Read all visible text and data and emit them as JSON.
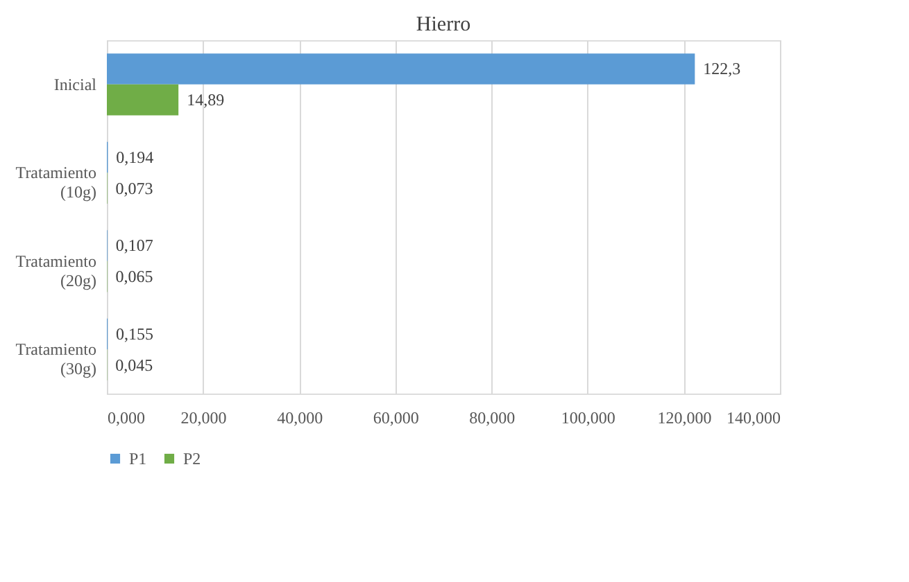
{
  "chart_data": {
    "type": "bar",
    "orientation": "horizontal",
    "title": "Hierro",
    "categories": [
      "Inicial",
      "Tratamiento (10g)",
      "Tratamiento (20g)",
      "Tratamiento (30g)"
    ],
    "series": [
      {
        "name": "P1",
        "color": "#5b9bd5",
        "values": [
          122.3,
          0.194,
          0.107,
          0.155
        ],
        "value_labels": [
          "122,3",
          "0,194",
          "0,107",
          "0,155"
        ]
      },
      {
        "name": "P2",
        "color": "#70ad47",
        "values": [
          14.89,
          0.073,
          0.065,
          0.045
        ],
        "value_labels": [
          "14,89",
          "0,073",
          "0,065",
          "0,045"
        ]
      }
    ],
    "xlim": [
      0,
      140
    ],
    "xticks": [
      {
        "value": 0,
        "label": "0,000"
      },
      {
        "value": 20,
        "label": "20,000"
      },
      {
        "value": 40,
        "label": "40,000"
      },
      {
        "value": 60,
        "label": "60,000"
      },
      {
        "value": 80,
        "label": "80,000"
      },
      {
        "value": 100,
        "label": "100,000"
      },
      {
        "value": 120,
        "label": "120,000"
      },
      {
        "value": 140,
        "label": "140,000"
      }
    ],
    "grid": "x",
    "legend": "bottom"
  }
}
